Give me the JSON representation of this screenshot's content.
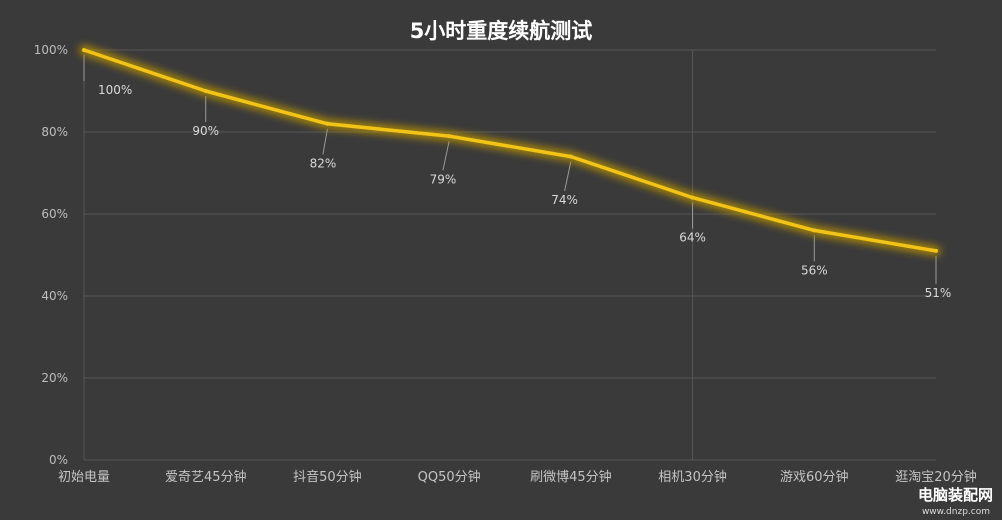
{
  "chart_data": {
    "type": "line",
    "title": "5小时重度续航测试",
    "categories": [
      "初始电量",
      "爱奇艺45分钟",
      "抖音50分钟",
      "QQ50分钟",
      "刷微博45分钟",
      "相机30分钟",
      "游戏60分钟",
      "逛淘宝20分钟"
    ],
    "series": [
      {
        "values": [
          100,
          90,
          82,
          79,
          74,
          64,
          56,
          51
        ]
      }
    ],
    "data_labels": [
      "100%",
      "90%",
      "82%",
      "79%",
      "74%",
      "64%",
      "56%",
      "51%"
    ],
    "y_ticks": [
      0,
      20,
      40,
      60,
      80,
      100
    ],
    "y_tick_labels": [
      "0%",
      "20%",
      "40%",
      "60%",
      "80%",
      "100%"
    ],
    "ylim": [
      0,
      100
    ],
    "xlabel": "",
    "ylabel": "",
    "grid": true,
    "colors": {
      "background": "#3a3a3a",
      "line": "#f2c418",
      "glow": "#b89200",
      "grid": "#575757"
    }
  },
  "watermark": {
    "text": "电脑装配网",
    "sub": "www.dnzp.com"
  }
}
